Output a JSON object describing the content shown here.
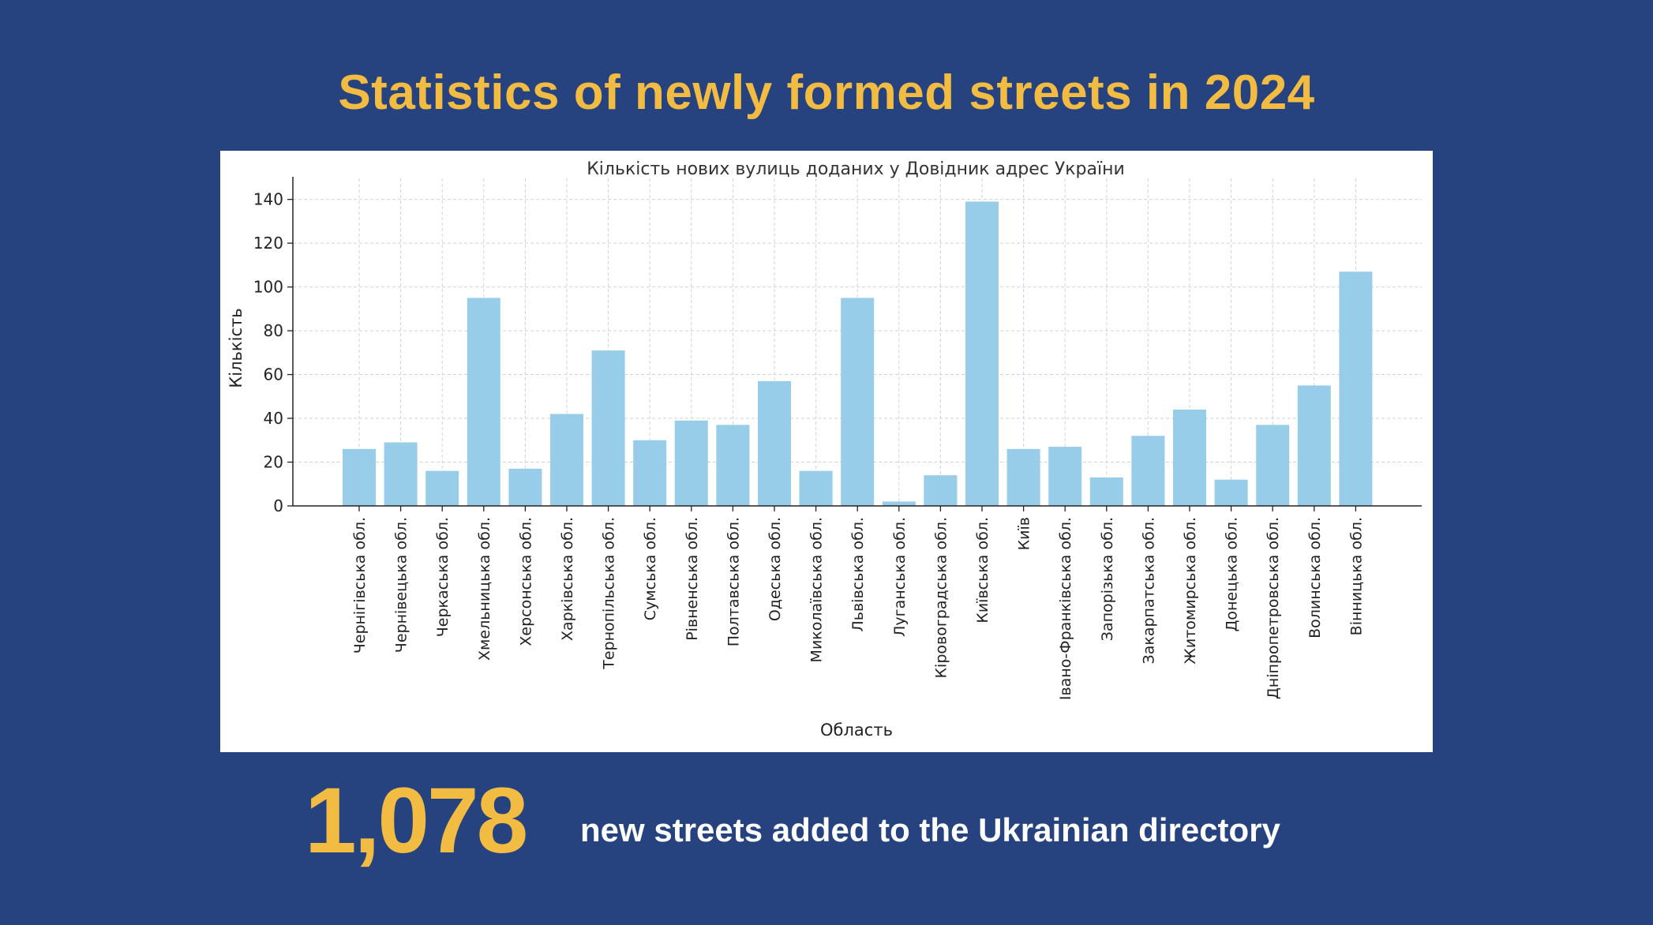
{
  "header": {
    "title": "Statistics of newly formed streets in 2024"
  },
  "summary": {
    "total": "1,078",
    "description": "new streets added to the Ukrainian directory"
  },
  "colors": {
    "background": "#264380",
    "accent": "#f2bb41",
    "bar": "#97cde8",
    "panel": "#ffffff"
  },
  "chart_data": {
    "type": "bar",
    "title": "Кількість нових вулиць доданих у Довідник адрес України",
    "xlabel": "Область",
    "ylabel": "Кількість",
    "ylim": [
      0,
      146
    ],
    "yticks": [
      0,
      20,
      40,
      60,
      80,
      100,
      120,
      140
    ],
    "grid": true,
    "categories": [
      "Чернігівська обл.",
      "Чернівецька обл.",
      "Черкаська обл.",
      "Хмельницька обл.",
      "Херсонська обл.",
      "Харківська обл.",
      "Тернопільська обл.",
      "Сумська обл.",
      "Рівненська обл.",
      "Полтавська обл.",
      "Одеська обл.",
      "Миколаївська обл.",
      "Львівська обл.",
      "Луганська обл.",
      "Кіровоградська обл.",
      "Київська обл.",
      "Київ",
      "Івано-Франківська обл.",
      "Запорізька обл.",
      "Закарпатська обл.",
      "Житомирська обл.",
      "Донецька обл.",
      "Дніпропетровська обл.",
      "Волинська обл.",
      "Вінницька обл."
    ],
    "values": [
      26,
      29,
      16,
      95,
      17,
      42,
      71,
      30,
      39,
      37,
      57,
      16,
      95,
      2,
      14,
      139,
      26,
      27,
      13,
      32,
      44,
      12,
      37,
      55,
      107
    ]
  }
}
